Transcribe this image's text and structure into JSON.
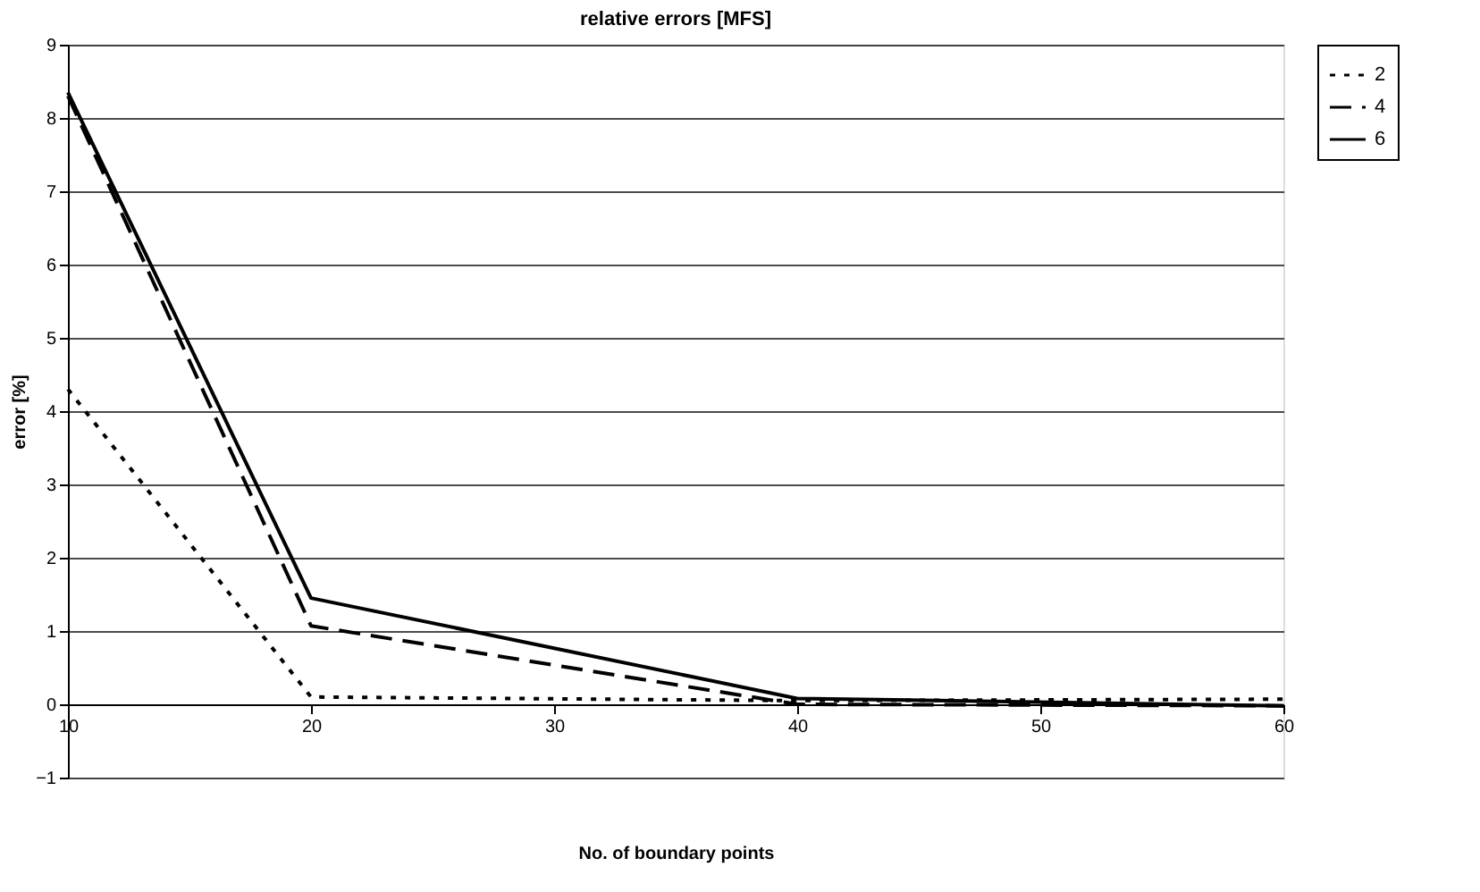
{
  "chart_data": {
    "type": "line",
    "title": "relative errors [MFS]",
    "xlabel": "No. of boundary points",
    "ylabel": "error [%]",
    "x": [
      10,
      20,
      40,
      60
    ],
    "series": [
      {
        "name": "2",
        "color": "#000000",
        "line_style": "dotted",
        "values": [
          4.3,
          0.1,
          0.05,
          0.07
        ]
      },
      {
        "name": "4",
        "color": "#000000",
        "line_style": "dashed",
        "values": [
          8.3,
          1.07,
          0.0,
          -0.02
        ]
      },
      {
        "name": "6",
        "color": "#000000",
        "line_style": "solid",
        "values": [
          8.35,
          1.45,
          0.08,
          -0.02
        ]
      }
    ],
    "xlim": [
      10,
      60
    ],
    "xticks": [
      10,
      20,
      30,
      40,
      50,
      60
    ],
    "ylim": [
      -1,
      9
    ],
    "yticks": [
      -1,
      0,
      1,
      2,
      3,
      4,
      5,
      6,
      7,
      8,
      9
    ],
    "grid": "y",
    "legend": "right",
    "marker": "none"
  }
}
